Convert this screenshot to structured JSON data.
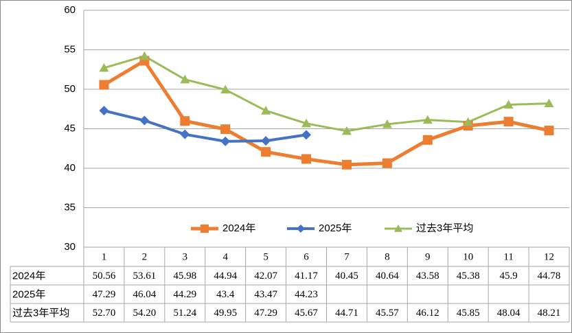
{
  "chart_data": {
    "type": "line",
    "categories": [
      "1",
      "2",
      "3",
      "4",
      "5",
      "6",
      "7",
      "8",
      "9",
      "10",
      "11",
      "12"
    ],
    "ylim": [
      30,
      60
    ],
    "yticks": [
      30,
      35,
      40,
      45,
      50,
      55,
      60
    ],
    "grid": true,
    "legend": "inside-bottom",
    "series": [
      {
        "name": "2024年",
        "color": "#ED7D31",
        "marker": "square",
        "values": [
          50.56,
          53.61,
          45.98,
          44.94,
          42.07,
          41.17,
          40.45,
          40.64,
          43.58,
          45.38,
          45.9,
          44.78
        ],
        "value_labels": [
          "50.56",
          "53.61",
          "45.98",
          "44.94",
          "42.07",
          "41.17",
          "40.45",
          "40.64",
          "43.58",
          "45.38",
          "45.9",
          "44.78"
        ]
      },
      {
        "name": "2025年",
        "color": "#4472C4",
        "marker": "diamond",
        "values": [
          47.29,
          46.04,
          44.29,
          43.4,
          43.47,
          44.23,
          null,
          null,
          null,
          null,
          null,
          null
        ],
        "value_labels": [
          "47.29",
          "46.04",
          "44.29",
          "43.4",
          "43.47",
          "44.23",
          null,
          null,
          null,
          null,
          null,
          null
        ]
      },
      {
        "name": "过去3年平均",
        "color": "#9BBB59",
        "marker": "triangle",
        "values": [
          52.7,
          54.2,
          51.24,
          49.95,
          47.29,
          45.67,
          44.71,
          45.57,
          46.12,
          45.85,
          48.04,
          48.21
        ],
        "value_labels": [
          "52.70",
          "54.20",
          "51.24",
          "49.95",
          "47.29",
          "45.67",
          "44.71",
          "45.57",
          "46.12",
          "45.85",
          "48.04",
          "48.21"
        ]
      }
    ]
  }
}
